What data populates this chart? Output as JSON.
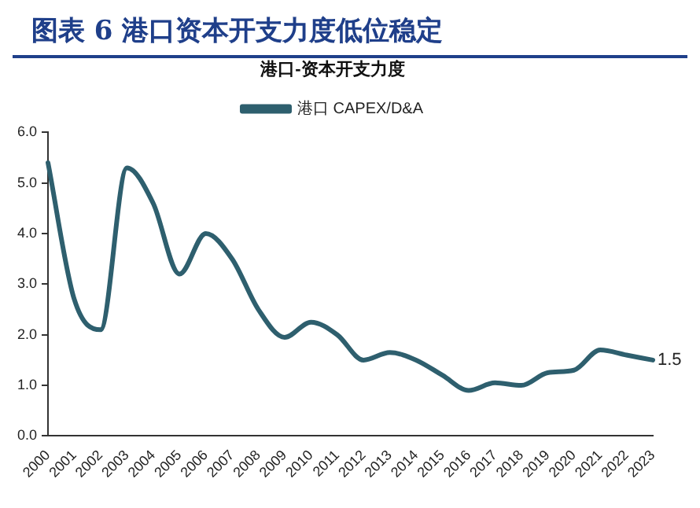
{
  "chart_data": {
    "type": "line",
    "title": "图表 6 港口资本开支力度低位稳定",
    "legend_title": "港口-资本开支力度",
    "categories": [
      "2000",
      "2001",
      "2002",
      "2003",
      "2004",
      "2005",
      "2006",
      "2007",
      "2008",
      "2009",
      "2010",
      "2011",
      "2012",
      "2013",
      "2014",
      "2015",
      "2016",
      "2017",
      "2018",
      "2019",
      "2020",
      "2021",
      "2022",
      "2023"
    ],
    "series": [
      {
        "name": "港口 CAPEX/D&A",
        "color": "#2e5f6e",
        "values": [
          5.4,
          2.7,
          2.1,
          5.3,
          4.6,
          3.2,
          4.0,
          3.5,
          2.5,
          1.95,
          2.25,
          2.0,
          1.5,
          1.65,
          1.5,
          1.2,
          0.9,
          1.05,
          1.0,
          1.25,
          1.3,
          1.7,
          1.6,
          1.5
        ],
        "value_labels": [
          null,
          null,
          null,
          null,
          null,
          null,
          null,
          null,
          null,
          null,
          null,
          null,
          null,
          null,
          null,
          null,
          null,
          null,
          null,
          null,
          null,
          null,
          null,
          "1.5"
        ]
      }
    ],
    "ylim": [
      0,
      6
    ],
    "yticks": [
      {
        "value": 0,
        "label": "0.0"
      },
      {
        "value": 1,
        "label": "1.0"
      },
      {
        "value": 2,
        "label": "2.0"
      },
      {
        "value": 3,
        "label": "3.0"
      },
      {
        "value": 4,
        "label": "4.0"
      },
      {
        "value": 5,
        "label": "5.0"
      },
      {
        "value": 6,
        "label": "6.0"
      }
    ],
    "grid": false,
    "legend": "top",
    "marker": "none",
    "line_style": "solid"
  }
}
